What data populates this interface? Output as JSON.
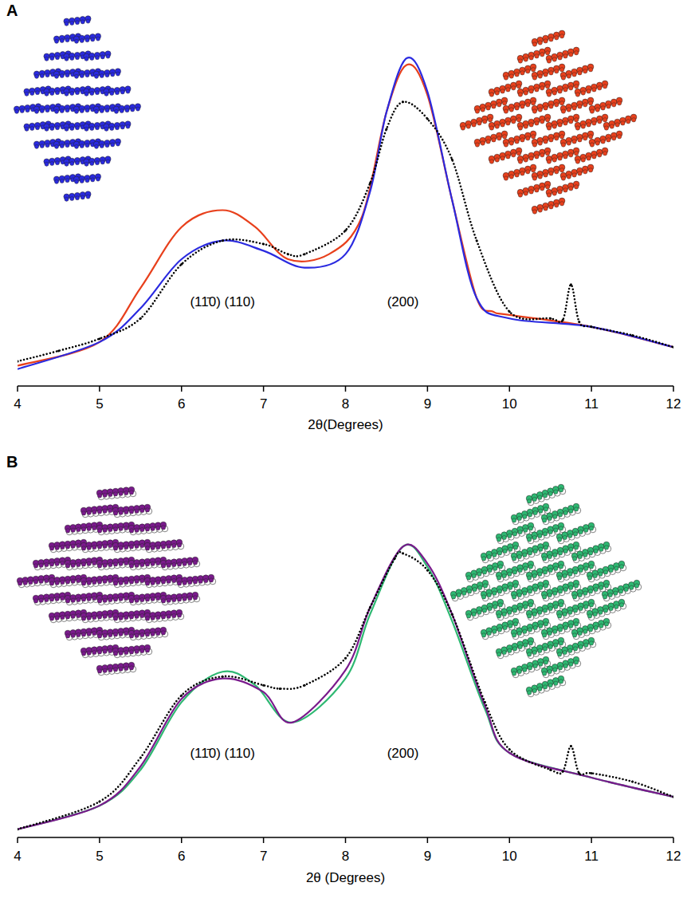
{
  "chart_data": [
    {
      "type": "line",
      "title": "A",
      "x_label": "2θ(Degrees)",
      "xlim": [
        4,
        12
      ],
      "xticks": [
        4,
        5,
        6,
        7,
        8,
        9,
        10,
        11,
        12
      ],
      "ylim": [
        0,
        100
      ],
      "tick_labels": "x",
      "annotations": [
        {
          "text": "(11̄0) (110)",
          "x": 6.5
        },
        {
          "text": "(200)",
          "x": 8.7
        }
      ],
      "series": [
        {
          "color": "#000000",
          "marker": "dot",
          "line_style": "dotted",
          "x": [
            4,
            4.5,
            5,
            5.5,
            6,
            6.5,
            7,
            7.3,
            7.5,
            8,
            8.3,
            8.5,
            8.7,
            9,
            9.3,
            9.6,
            10,
            10.5,
            10.65,
            10.75,
            10.85,
            11,
            11.5,
            12
          ],
          "values": [
            7.3,
            10.4,
            14,
            20,
            36,
            43,
            42,
            39,
            39,
            46,
            60,
            76,
            84,
            79,
            67,
            43,
            22,
            20,
            19.5,
            30,
            19,
            17.5,
            15,
            11.5
          ]
        },
        {
          "color": "#e8401c",
          "line_style": "solid",
          "x": [
            4,
            5,
            5.5,
            6,
            6.5,
            6.9,
            7.3,
            7.8,
            8.2,
            8.5,
            8.75,
            9,
            9.3,
            9.6,
            9.8,
            10,
            11,
            12
          ],
          "values": [
            6,
            13,
            29,
            47,
            52,
            47,
            37.5,
            39,
            50,
            81,
            95,
            86,
            55,
            26,
            22,
            21,
            17.5,
            11.5
          ]
        },
        {
          "color": "#2a2ae0",
          "line_style": "solid",
          "x": [
            4,
            5,
            5.5,
            6,
            6.5,
            7,
            7.5,
            8,
            8.3,
            8.5,
            8.75,
            9,
            9.3,
            9.6,
            10,
            11,
            12
          ],
          "values": [
            5,
            13,
            23,
            37.5,
            43,
            40,
            35,
            39,
            57.5,
            81,
            97,
            87,
            55,
            26,
            20,
            17.5,
            11.5
          ]
        }
      ]
    },
    {
      "type": "line",
      "title": "B",
      "x_label": "2θ (Degrees)",
      "xlim": [
        4,
        12
      ],
      "xticks": [
        4,
        5,
        6,
        7,
        8,
        9,
        10,
        11,
        12
      ],
      "ylim": [
        0,
        100
      ],
      "tick_labels": "x",
      "annotations": [
        {
          "text": "(11̄0) (110)",
          "x": 6.5
        },
        {
          "text": "(200)",
          "x": 8.7
        }
      ],
      "series": [
        {
          "color": "#000000",
          "marker": "dot",
          "line_style": "dotted",
          "x": [
            4,
            5,
            5.5,
            6,
            6.5,
            7,
            7.2,
            7.5,
            8,
            8.3,
            8.6,
            8.7,
            9,
            9.3,
            9.7,
            10,
            10.5,
            10.65,
            10.75,
            10.85,
            11,
            11.5,
            12
          ],
          "values": [
            2.4,
            10.6,
            23.6,
            42,
            47.6,
            45,
            44,
            45,
            53,
            68,
            82.5,
            84,
            79,
            66,
            40,
            26,
            20,
            19.5,
            27,
            19,
            19,
            16.5,
            12
          ]
        },
        {
          "color": "#2eb872",
          "line_style": "solid",
          "x": [
            4,
            5,
            5.5,
            6,
            6.5,
            6.9,
            7.35,
            8,
            8.3,
            8.7,
            9,
            9.3,
            9.7,
            10,
            11,
            12
          ],
          "values": [
            2.4,
            9.4,
            20,
            40,
            49,
            45,
            34,
            47,
            66,
            86,
            80,
            64,
            38,
            25,
            17.7,
            12
          ]
        },
        {
          "color": "#7a1a8c",
          "line_style": "solid",
          "x": [
            4,
            5,
            5.5,
            6,
            6.5,
            7,
            7.35,
            8,
            8.3,
            8.7,
            9,
            9.3,
            9.7,
            10,
            11,
            12
          ],
          "values": [
            2.4,
            9.4,
            21,
            41,
            47,
            43,
            34,
            49.5,
            68,
            86,
            81,
            66,
            39,
            25,
            17.7,
            12
          ]
        }
      ]
    }
  ]
}
